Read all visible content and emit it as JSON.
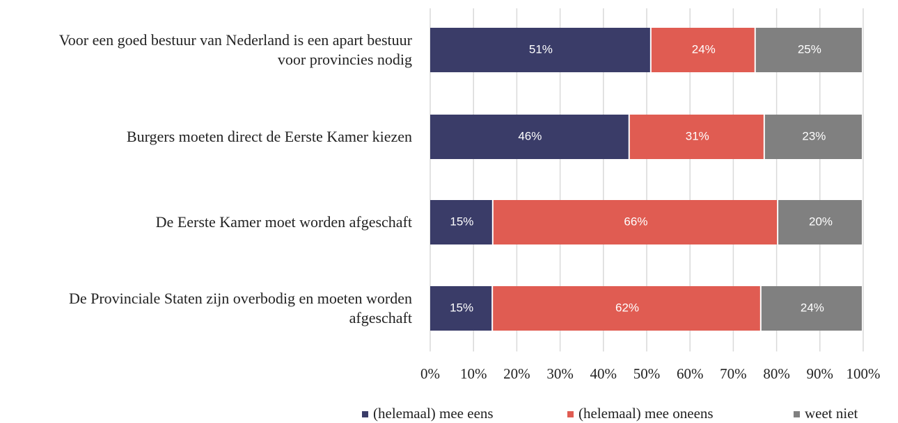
{
  "chart_data": {
    "type": "stacked-bar-horizontal",
    "categories": [
      "Voor een goed bestuur van Nederland is een apart bestuur voor provincies nodig",
      "Burgers moeten direct de Eerste Kamer kiezen",
      "De Eerste Kamer moet worden afgeschaft",
      "De Provinciale Staten zijn overbodig en moeten worden afgeschaft"
    ],
    "series": [
      {
        "name": "(helemaal) mee eens",
        "color": "#3a3c68",
        "values": [
          51.1,
          46.1,
          14.6,
          14.5
        ],
        "value_labels": [
          "51%",
          "46%",
          "15%",
          "15%"
        ]
      },
      {
        "name": "(helemaal) mee oneens",
        "color": "#e05c52",
        "values": [
          24.1,
          31.2,
          65.8,
          62.0
        ],
        "value_labels": [
          "24%",
          "31%",
          "66%",
          "62%"
        ]
      },
      {
        "name": "weet niet",
        "color": "#808080",
        "values": [
          24.8,
          22.7,
          19.6,
          23.5
        ],
        "value_labels": [
          "25%",
          "23%",
          "20%",
          "24%"
        ]
      }
    ],
    "xlim": [
      0,
      100
    ],
    "xticks": [
      {
        "value": 0,
        "label": "0%"
      },
      {
        "value": 10,
        "label": "10%"
      },
      {
        "value": 20,
        "label": "20%"
      },
      {
        "value": 30,
        "label": "30%"
      },
      {
        "value": 40,
        "label": "40%"
      },
      {
        "value": 50,
        "label": "50%"
      },
      {
        "value": 60,
        "label": "60%"
      },
      {
        "value": 70,
        "label": "70%"
      },
      {
        "value": 80,
        "label": "80%"
      },
      {
        "value": 90,
        "label": "90%"
      },
      {
        "value": 100,
        "label": "100%"
      }
    ],
    "grid": true,
    "legend": "bottom"
  }
}
